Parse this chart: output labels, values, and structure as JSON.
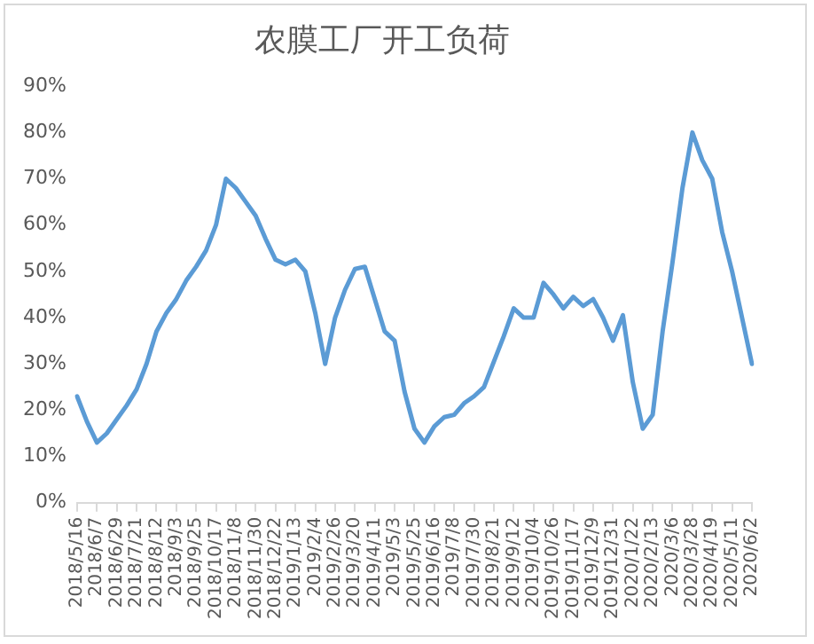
{
  "chart_data": {
    "type": "line",
    "title": "农膜工厂开工负荷",
    "categories": [
      "2018/5/16",
      null,
      "2018/6/7",
      null,
      "2018/6/29",
      null,
      "2018/7/21",
      null,
      "2018/8/12",
      null,
      "2018/9/3",
      null,
      "2018/9/25",
      null,
      "2018/10/17",
      null,
      "2018/11/8",
      null,
      "2018/11/30",
      null,
      "2018/12/22",
      null,
      "2019/1/13",
      null,
      "2019/2/4",
      null,
      "2019/2/26",
      null,
      "2019/3/20",
      null,
      "2019/4/11",
      null,
      "2019/5/3",
      null,
      "2019/5/25",
      null,
      "2019/6/16",
      null,
      "2019/7/8",
      null,
      "2019/7/30",
      null,
      "2019/8/21",
      null,
      "2019/9/12",
      null,
      "2019/10/4",
      null,
      "2019/10/26",
      null,
      "2019/11/17",
      null,
      "2019/12/9",
      null,
      "2019/12/31",
      null,
      "2020/1/22",
      null,
      "2020/2/13",
      null,
      "2020/3/6",
      null,
      "2020/3/28",
      null,
      "2020/4/19",
      null,
      "2020/5/11",
      null,
      "2020/6/2"
    ],
    "series": [
      {
        "color": "#5b9bd5",
        "values": [
          23,
          17.5,
          13,
          15,
          18,
          21,
          24.5,
          30,
          37,
          41,
          44,
          48,
          51,
          54.5,
          60,
          70,
          68,
          65,
          62,
          57,
          52.5,
          51.5,
          52.5,
          50,
          41,
          30,
          40,
          46,
          50.5,
          51,
          44,
          37,
          35,
          24,
          16,
          13,
          16.5,
          18.5,
          19,
          21.5,
          23,
          25,
          30.5,
          36,
          42,
          40,
          40,
          47.5,
          45,
          42,
          44.5,
          42.5,
          44,
          40,
          35,
          40.5,
          26,
          16,
          19,
          37,
          52,
          68,
          80,
          74,
          70,
          58.5,
          50,
          40,
          30
        ]
      }
    ],
    "ylim": [
      0,
      90
    ],
    "yticks": [
      {
        "value": 0,
        "label": "0%"
      },
      {
        "value": 10,
        "label": "10%"
      },
      {
        "value": 20,
        "label": "20%"
      },
      {
        "value": 30,
        "label": "30%"
      },
      {
        "value": 40,
        "label": "40%"
      },
      {
        "value": 50,
        "label": "50%"
      },
      {
        "value": 60,
        "label": "60%"
      },
      {
        "value": 70,
        "label": "70%"
      },
      {
        "value": 80,
        "label": "80%"
      },
      {
        "value": 90,
        "label": "90%"
      }
    ],
    "grid": false,
    "legend": false,
    "marker": "none",
    "line_style": "solid"
  }
}
